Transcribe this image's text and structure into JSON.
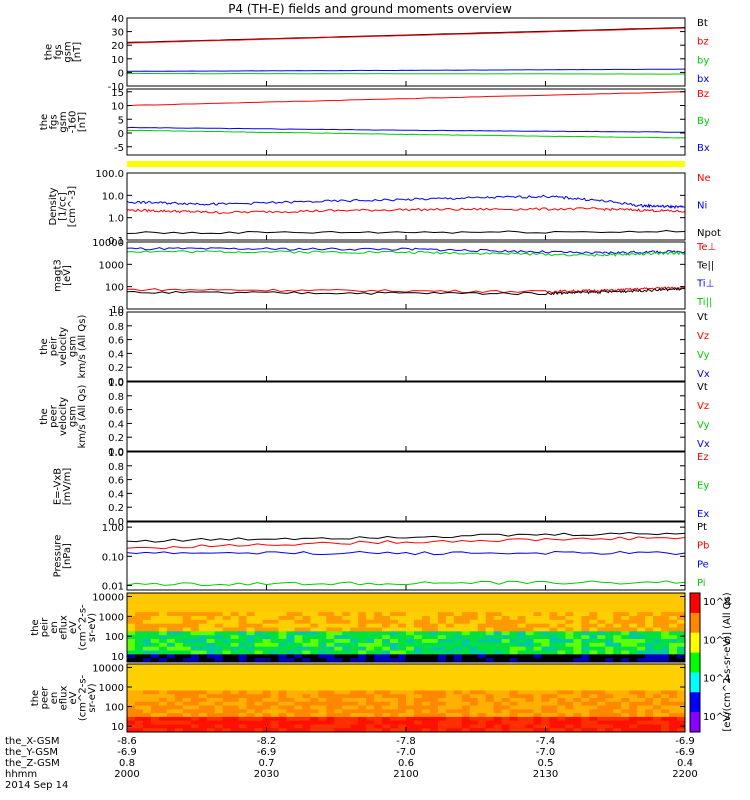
{
  "title": "P4 (TH-E) fields and ground moments overview",
  "footer": {
    "row_labels": [
      "the_X-GSM",
      "the_Y-GSM",
      "the_Z-GSM",
      "hhmm",
      "2014 Sep 14"
    ],
    "columns": [
      [
        "-8.6",
        "-6.9",
        "0.8",
        "2000"
      ],
      [
        "-8.2",
        "-6.9",
        "0.7",
        "2030"
      ],
      [
        "-7.8",
        "-7.0",
        "0.6",
        "2100"
      ],
      [
        "-7.4",
        "-7.0",
        "0.5",
        "2130"
      ],
      [
        "-6.9",
        "-6.9",
        "0.4",
        "2200"
      ]
    ]
  },
  "colorbar": {
    "label": "[eV/(cm^2-s-sr-eV)] (All Qs)",
    "ticks": [
      "10^8",
      "10^6",
      "10^4",
      "10^2"
    ]
  },
  "colors": {
    "black": "#000000",
    "red": "#ff0000",
    "green": "#00cc00",
    "blue": "#0000ff",
    "yellow": "#ffff00"
  },
  "chart_data": [
    {
      "type": "line",
      "ylabel": [
        "the",
        "fgs",
        "gsm",
        "[nT]"
      ],
      "ylim": [
        -10,
        40
      ],
      "ticks": [
        40,
        30,
        20,
        10,
        0,
        -10
      ],
      "legend": [
        "Bt",
        "bz",
        "by",
        "bx"
      ],
      "series": [
        {
          "name": "Bt",
          "color": "black",
          "x": [
            0,
            120
          ],
          "y": [
            22,
            33
          ]
        },
        {
          "name": "bz",
          "color": "red",
          "x": [
            0,
            120
          ],
          "y": [
            21.6,
            32.6
          ]
        },
        {
          "name": "by",
          "color": "green",
          "x": [
            0,
            120
          ],
          "y": [
            -0.8,
            -1.2
          ]
        },
        {
          "name": "bx",
          "color": "blue",
          "x": [
            0,
            60,
            120
          ],
          "y": [
            0.8,
            1.5,
            2.4
          ]
        }
      ]
    },
    {
      "type": "line",
      "ylabel": [
        "the",
        "fgs",
        "gsm",
        "-160",
        "[nT]"
      ],
      "ylim": [
        -8,
        16
      ],
      "ticks": [
        15,
        10,
        5,
        0,
        -5
      ],
      "legend": [
        "Bz",
        "By",
        "Bx"
      ],
      "series": [
        {
          "name": "Bz",
          "color": "red",
          "x": [
            0,
            120
          ],
          "y": [
            10,
            15
          ]
        },
        {
          "name": "By",
          "color": "green",
          "x": [
            0,
            60,
            120
          ],
          "y": [
            1,
            -0.5,
            -1.8
          ]
        },
        {
          "name": "Bx",
          "color": "blue",
          "x": [
            0,
            60,
            120
          ],
          "y": [
            2,
            1,
            0.3
          ]
        }
      ]
    },
    {
      "type": "line",
      "scale": "log",
      "ylabel": [
        "Density",
        "[1/cc]",
        "[cm^-3]"
      ],
      "ylim": [
        0.1,
        100
      ],
      "ticks": [
        "100.0",
        "10.0",
        "1.0",
        "0.1"
      ],
      "legend": [
        "Ne",
        "Ni",
        "Npot"
      ],
      "series": [
        {
          "name": "Ne",
          "color": "red",
          "x": [
            0,
            20,
            60,
            100,
            120
          ],
          "y": [
            2.2,
            1.7,
            2.3,
            2.5,
            1.9
          ]
        },
        {
          "name": "Ni",
          "color": "blue",
          "x": [
            0,
            20,
            60,
            90,
            110,
            120
          ],
          "y": [
            5,
            4,
            6.5,
            9,
            3.5,
            3
          ]
        },
        {
          "name": "Npot",
          "color": "black",
          "x": [
            0,
            120
          ],
          "y": [
            0.21,
            0.24
          ]
        }
      ]
    },
    {
      "type": "line",
      "scale": "log",
      "ylabel": [
        "magt3",
        "[eV]"
      ],
      "ylim": [
        10,
        10000
      ],
      "ticks": [
        "10000",
        "1000",
        "100",
        "10"
      ],
      "legend": [
        "Te⊥",
        "Te||",
        "Ti⊥",
        "Ti||"
      ],
      "series": [
        {
          "name": "Te⊥",
          "color": "red",
          "x": [
            0,
            90,
            105,
            120
          ],
          "y": [
            75,
            60,
            70,
            95
          ]
        },
        {
          "name": "Te||",
          "color": "black",
          "x": [
            0,
            90,
            105,
            120
          ],
          "y": [
            55,
            50,
            60,
            80
          ]
        },
        {
          "name": "Ti⊥",
          "color": "blue",
          "x": [
            0,
            60,
            100,
            120
          ],
          "y": [
            5000,
            4800,
            3200,
            3800
          ]
        },
        {
          "name": "Ti||",
          "color": "green",
          "x": [
            0,
            60,
            100,
            120
          ],
          "y": [
            3800,
            3500,
            2600,
            3200
          ]
        }
      ]
    },
    {
      "type": "line",
      "ylabel": [
        "the",
        "peir",
        "velocity",
        "gsm",
        "km/s (All Qs)"
      ],
      "ylim": [
        0,
        1
      ],
      "ticks": [
        "1.0",
        "0.8",
        "0.6",
        "0.4",
        "0.2",
        "0.0"
      ],
      "legend": [
        "Vt",
        "Vz",
        "Vy",
        "Vx"
      ],
      "series": []
    },
    {
      "type": "line",
      "ylabel": [
        "the",
        "peer",
        "velocity",
        "gsm",
        "km/s (All Qs)"
      ],
      "ylim": [
        0,
        1
      ],
      "ticks": [
        "1.0",
        "0.8",
        "0.6",
        "0.4",
        "0.2",
        "0.0"
      ],
      "legend": [
        "Vt",
        "Vz",
        "Vy",
        "Vx"
      ],
      "series": []
    },
    {
      "type": "line",
      "ylabel": [
        "E=-VxB",
        "[mV/m]"
      ],
      "ylim": [
        0,
        1
      ],
      "ticks": [
        "1.0",
        "0.8",
        "0.6",
        "0.4",
        "0.2",
        "0.0"
      ],
      "legend": [
        "Ez",
        "Ey",
        "Ex"
      ],
      "series": []
    },
    {
      "type": "line",
      "scale": "log",
      "ylabel": [
        "Pressure",
        "[nPa]"
      ],
      "ylim": [
        0.007,
        1.5
      ],
      "ticks": [
        "1.00",
        "0.10",
        "0.01"
      ],
      "legend": [
        "Pt",
        "Pb",
        "Pe",
        "Pi"
      ],
      "series": [
        {
          "name": "Pt",
          "color": "black",
          "x": [
            0,
            120
          ],
          "y": [
            0.33,
            0.62
          ]
        },
        {
          "name": "Pb",
          "color": "red",
          "x": [
            0,
            120
          ],
          "y": [
            0.19,
            0.44
          ]
        },
        {
          "name": "Pe",
          "color": "blue",
          "x": [
            0,
            120
          ],
          "y": [
            0.13,
            0.13
          ]
        },
        {
          "name": "Pi",
          "color": "green",
          "x": [
            0,
            120
          ],
          "y": [
            0.011,
            0.013
          ]
        }
      ]
    },
    {
      "type": "heatmap",
      "ylabel": [
        "the",
        "peir",
        "en",
        "eflux",
        "eV",
        "(cm^2-s-",
        "sr-eV)"
      ],
      "ylim": [
        5,
        15000
      ],
      "ticks": [
        "10000",
        "1000",
        "100",
        "10"
      ]
    },
    {
      "type": "heatmap",
      "ylabel": [
        "the",
        "peer",
        "en",
        "eflux",
        "eV",
        "(cm^2-s-",
        "sr-eV)"
      ],
      "ylim": [
        5,
        15000
      ],
      "ticks": [
        "10000",
        "1000",
        "100",
        "10"
      ]
    }
  ]
}
